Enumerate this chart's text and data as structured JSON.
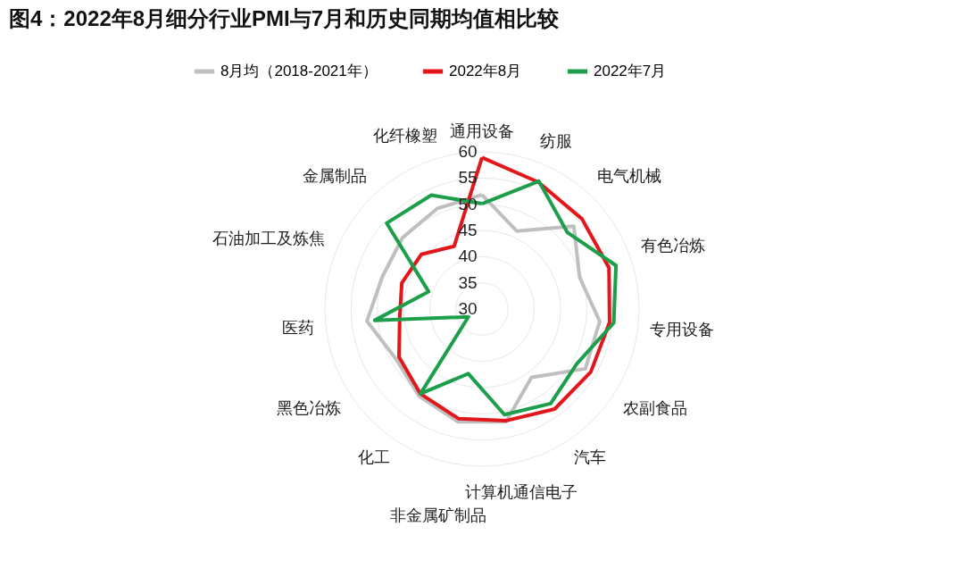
{
  "chart_data": {
    "type": "radar",
    "title": "图4：2022年8月细分行业PMI与7月和历史同期均值相比较",
    "categories": [
      "通用设备",
      "纺服",
      "电气机械",
      "有色冶炼",
      "专用设备",
      "农副食品",
      "汽车",
      "计算机通信电子",
      "非金属矿制品",
      "化工",
      "黑色冶炼",
      "医药",
      "石油加工及炼焦",
      "金属制品",
      "化纤橡塑"
    ],
    "series": [
      {
        "name": "8月均（2018-2021年）",
        "color": "#bfbfbf",
        "values": [
          51.8,
          46.3,
          53.6,
          49.6,
          52.6,
          52.8,
          46.1,
          52,
          52,
          50.5,
          49,
          52.1,
          50,
          50.4,
          51
        ]
      },
      {
        "name": "2022年8月",
        "color": "#e3161c",
        "values": [
          58.9,
          56.5,
          55.7,
          55.5,
          54.5,
          54,
          53.6,
          51.8,
          51.4,
          50,
          48.3,
          45.8,
          46.1,
          45.6,
          43.1
        ]
      },
      {
        "name": "2022年7月",
        "color": "#1c9e4a",
        "values": [
          50.1,
          56.7,
          51.9,
          56.9,
          55.3,
          50.9,
          52.3,
          50.6,
          42.6,
          50,
          33,
          50.6,
          40.7,
          54.5,
          53.8
        ]
      }
    ],
    "ylim": [
      30,
      60
    ],
    "yticks": [
      30,
      35,
      40,
      45,
      50,
      55,
      60
    ],
    "grid": true,
    "legend": "top"
  }
}
